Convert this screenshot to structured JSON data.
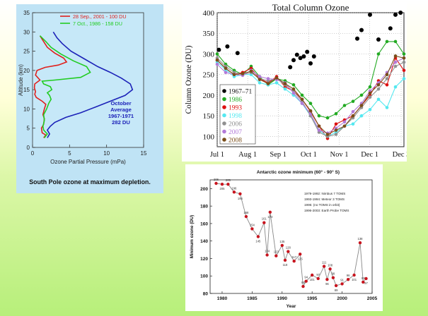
{
  "chart_data": [
    {
      "type": "line",
      "xlabel": "Ozone Partial Pressure (mPa)",
      "ylabel": "Altitude (km)",
      "xlim": [
        0,
        15
      ],
      "ylim": [
        0,
        35
      ],
      "xticks": [
        "0",
        "5",
        "10",
        "15"
      ],
      "yticks": [
        "0",
        "5",
        "10",
        "15",
        "20",
        "25",
        "30",
        "35"
      ],
      "caption": "South Pole ozone at maximum depletion.",
      "annotation": [
        "October",
        "Average",
        "1967-1971",
        "282 DU"
      ],
      "colors": {
        "red": "#e0201c",
        "green": "#22cc22",
        "blue": "#1c22b8"
      },
      "series": [
        {
          "name": "28 Sep., 2001 - 100 DU",
          "color": "#e0201c",
          "points": [
            [
              1.5,
              2.5
            ],
            [
              1.8,
              3.2
            ],
            [
              1.3,
              3.8
            ],
            [
              1.2,
              5
            ],
            [
              1.5,
              6
            ],
            [
              1.6,
              7.5
            ],
            [
              1.4,
              8.5
            ],
            [
              1.6,
              10
            ],
            [
              1.8,
              11.2
            ],
            [
              1.3,
              12
            ],
            [
              0.5,
              13
            ],
            [
              0.3,
              13.8
            ],
            [
              0.4,
              14.5
            ],
            [
              0.25,
              15.5
            ],
            [
              0.3,
              16.5
            ],
            [
              1.0,
              17.5
            ],
            [
              0.4,
              18.8
            ],
            [
              0.6,
              20
            ],
            [
              1.7,
              20.8
            ],
            [
              3.5,
              21.4
            ],
            [
              4.6,
              22.2
            ],
            [
              4.2,
              23.2
            ],
            [
              3.0,
              24.5
            ],
            [
              2.0,
              26
            ],
            [
              1.5,
              27.5
            ],
            [
              1.0,
              29
            ]
          ]
        },
        {
          "name": "7 Oct., 1986 - 158 DU",
          "color": "#22cc22",
          "points": [
            [
              1.6,
              2.5
            ],
            [
              2.0,
              3.5
            ],
            [
              1.5,
              4.5
            ],
            [
              1.4,
              5.5
            ],
            [
              1.6,
              7
            ],
            [
              1.5,
              8.5
            ],
            [
              1.9,
              10
            ],
            [
              2.2,
              11.5
            ],
            [
              2.5,
              12.5
            ],
            [
              2.3,
              13.5
            ],
            [
              2.0,
              14.2
            ],
            [
              2.6,
              15
            ],
            [
              2.4,
              15.8
            ],
            [
              1.5,
              16.5
            ],
            [
              1.3,
              17.2
            ],
            [
              3.0,
              17.5
            ],
            [
              6.5,
              18.2
            ],
            [
              7.8,
              19.5
            ],
            [
              7.3,
              21
            ],
            [
              5.5,
              22.5
            ],
            [
              3.8,
              24.3
            ],
            [
              2.5,
              26
            ],
            [
              1.8,
              27.5
            ],
            [
              1.0,
              29
            ]
          ]
        },
        {
          "name": "October Average 1967-1971 282 DU",
          "color": "#1c22b8",
          "points": [
            [
              2.0,
              2.5
            ],
            [
              2.3,
              3.5
            ],
            [
              2.0,
              4.5
            ],
            [
              2.4,
              5.5
            ],
            [
              3.0,
              6.5
            ],
            [
              4.5,
              7.8
            ],
            [
              6.5,
              9
            ],
            [
              8.5,
              10.5
            ],
            [
              10.5,
              12
            ],
            [
              12.5,
              13.5
            ],
            [
              13.5,
              15
            ],
            [
              13.2,
              16.5
            ],
            [
              12.0,
              18
            ],
            [
              10.5,
              19.5
            ],
            [
              8.8,
              21
            ],
            [
              7.0,
              23
            ],
            [
              5.2,
              25
            ],
            [
              4.0,
              27
            ],
            [
              3.3,
              28.5
            ],
            [
              2.8,
              30
            ]
          ]
        }
      ]
    },
    {
      "type": "line",
      "title": "Total Column Ozone",
      "ylabel": "Column Ozone (DU)",
      "ylim": [
        75,
        400
      ],
      "yticks": [
        "100",
        "150",
        "200",
        "250",
        "300",
        "350",
        "400"
      ],
      "xticks": [
        "Jul 1",
        "Aug 1",
        "Sep 1",
        "Oct 1",
        "Nov 1",
        "Dec 1",
        "Dec 3"
      ],
      "series": [
        {
          "name": "1967–71",
          "color": "#000000",
          "x": [
            0.1,
            0.6,
            1.2,
            4.3,
            4.5,
            4.7,
            4.9,
            5.1,
            5.3,
            5.5,
            5.7,
            8.25,
            8.5,
            9.0,
            9.5,
            10.2,
            10.5,
            10.8
          ],
          "y": [
            310,
            318,
            302,
            268,
            285,
            298,
            290,
            294,
            305,
            277,
            294,
            337,
            358,
            395,
            335,
            362,
            395,
            400
          ]
        },
        {
          "name": "1986",
          "color": "#22aa22",
          "x": [
            0,
            0.5,
            1,
            1.5,
            2,
            2.5,
            3,
            3.5,
            4,
            4.5,
            5,
            5.5,
            6,
            6.5,
            7,
            7.5,
            8,
            8.5,
            9,
            9.5,
            10,
            10.5,
            11
          ],
          "y": [
            300,
            275,
            260,
            250,
            270,
            245,
            225,
            240,
            235,
            225,
            200,
            180,
            150,
            145,
            155,
            175,
            185,
            200,
            220,
            300,
            330,
            330,
            300
          ]
        },
        {
          "name": "1993",
          "color": "#dd1010",
          "x": [
            0,
            0.5,
            1,
            1.5,
            2,
            2.5,
            3,
            3.5,
            4,
            4.5,
            5,
            5.5,
            6,
            6.5,
            7,
            7.5,
            8,
            8.5,
            9,
            9.5,
            10,
            10.5,
            11
          ],
          "y": [
            285,
            265,
            250,
            255,
            265,
            240,
            230,
            245,
            220,
            210,
            190,
            160,
            125,
            95,
            130,
            140,
            150,
            175,
            200,
            235,
            225,
            290,
            260
          ]
        },
        {
          "name": "1998",
          "color": "#55e8f0",
          "x": [
            0,
            0.5,
            1,
            1.5,
            2,
            2.5,
            3,
            3.5,
            4,
            4.5,
            5,
            5.5,
            6,
            6.5,
            7,
            7.5,
            8,
            8.5,
            9,
            9.5,
            10,
            10.5,
            11
          ],
          "y": [
            280,
            262,
            245,
            250,
            250,
            230,
            225,
            230,
            215,
            200,
            180,
            150,
            115,
            100,
            110,
            125,
            130,
            150,
            165,
            190,
            170,
            220,
            240
          ]
        },
        {
          "name": "2006",
          "color": "#909090",
          "x": [
            0,
            0.5,
            1,
            1.5,
            2,
            2.5,
            3,
            3.5,
            4,
            4.5,
            5,
            5.5,
            6,
            6.5,
            7,
            7.5,
            8,
            8.5,
            9,
            9.5,
            10,
            10.5,
            11
          ],
          "y": [
            290,
            270,
            255,
            250,
            255,
            240,
            235,
            240,
            225,
            210,
            185,
            150,
            110,
            100,
            105,
            125,
            145,
            170,
            195,
            215,
            240,
            270,
            280
          ]
        },
        {
          "name": "2007",
          "color": "#b27ad8",
          "x": [
            0,
            0.5,
            1,
            1.5,
            2,
            2.5,
            3,
            3.5,
            4,
            4.5,
            5,
            5.5,
            6,
            6.5,
            7,
            7.5,
            8,
            8.5,
            9,
            9.5,
            10,
            10.5,
            11
          ],
          "y": [
            275,
            255,
            250,
            248,
            260,
            245,
            240,
            238,
            230,
            205,
            180,
            155,
            115,
            108,
            120,
            135,
            160,
            180,
            210,
            230,
            255,
            280,
            290
          ]
        },
        {
          "name": "2008",
          "color": "#7a4e1a",
          "x": [
            0,
            0.5,
            1,
            1.5,
            2,
            2.5,
            3,
            3.5,
            4,
            4.5,
            5,
            5.5,
            6,
            6.5,
            7,
            7.5,
            8,
            8.5,
            9,
            9.5,
            10,
            10.5,
            11
          ],
          "y": [
            285,
            265,
            250,
            252,
            258,
            238,
            228,
            242,
            228,
            215,
            190,
            162,
            125,
            105,
            115,
            125,
            150,
            175,
            205,
            225,
            250,
            295,
            290
          ]
        }
      ]
    },
    {
      "type": "line",
      "title": "Antarctic ozone minimum (60° - 90° S)",
      "xlabel": "Year",
      "ylabel": "Minimum ozone (DU)",
      "xlim": [
        1978,
        2005
      ],
      "ylim": [
        80,
        210
      ],
      "xticks": [
        "1980",
        "1985",
        "1990",
        "1995",
        "2000",
        "2005"
      ],
      "yticks": [
        "80",
        "100",
        "120",
        "140",
        "160",
        "180",
        "200"
      ],
      "legend_lines": [
        "1979-1992: Nimbus 7 TOMS",
        "1993-1994: Meteor 3 TOMS",
        "1995: (no TOMS in orbit)",
        "1996-2003: Earth Probe TOMS"
      ],
      "point_labels": [
        "206",
        "205",
        "205",
        "196",
        "194",
        "168",
        "154",
        "145",
        "161",
        "124",
        "173",
        "123",
        "135",
        "118",
        "128",
        "117",
        "125",
        "88",
        "94",
        "101",
        "97",
        "111",
        "96",
        "108",
        "98",
        "89",
        "91",
        "96",
        "101",
        "138",
        "93",
        "97"
      ],
      "years": [
        1979,
        1980,
        1981,
        1982,
        1983,
        1984,
        1985,
        1986,
        1987,
        1987.5,
        1988,
        1989,
        1990,
        1990.5,
        1991,
        1992,
        1993,
        1993.5,
        1994,
        1995,
        1996,
        1997,
        1997.5,
        1998,
        1998.5,
        1999,
        2000,
        2001,
        2002,
        2003,
        2003.5,
        2004
      ],
      "values": [
        206,
        205,
        205,
        196,
        194,
        168,
        154,
        145,
        161,
        124,
        173,
        123,
        135,
        118,
        128,
        117,
        125,
        88,
        94,
        101,
        97,
        111,
        96,
        108,
        98,
        89,
        91,
        96,
        101,
        138,
        93,
        97
      ]
    }
  ]
}
